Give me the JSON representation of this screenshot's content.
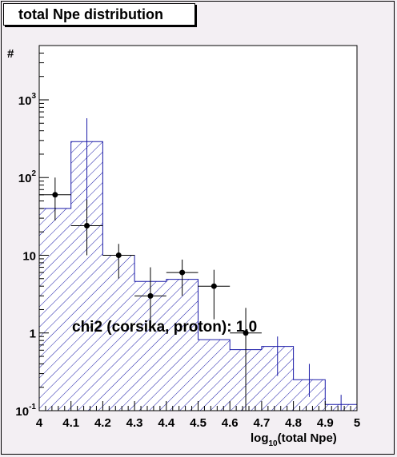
{
  "title": "total Npe distribution",
  "chart_data": {
    "type": "bar",
    "title": "total Npe distribution",
    "xlabel_main": "log",
    "xlabel_sub": "10",
    "xlabel_rest": "(total Npe)",
    "ylabel": "#",
    "xlim": [
      4.0,
      5.0
    ],
    "ylim": [
      0.1,
      5000
    ],
    "ylog": true,
    "x_ticks": [
      "4",
      "4.1",
      "4.2",
      "4.3",
      "4.4",
      "4.5",
      "4.6",
      "4.7",
      "4.8",
      "4.9",
      "5"
    ],
    "y_ticks": [
      {
        "value": 0.1,
        "base": "10",
        "exp": "-1"
      },
      {
        "value": 1,
        "base": "1",
        "exp": ""
      },
      {
        "value": 10,
        "base": "10",
        "exp": ""
      },
      {
        "value": 100,
        "base": "10",
        "exp": "2"
      },
      {
        "value": 1000,
        "base": "10",
        "exp": "3"
      }
    ],
    "series": [
      {
        "kind": "histogram",
        "color": "#1a1aa8",
        "bin_edges": [
          4.0,
          4.1,
          4.2,
          4.3,
          4.4,
          4.5,
          4.6,
          4.7,
          4.8,
          4.9,
          5.0
        ],
        "values": [
          40,
          290,
          10,
          4.6,
          4.9,
          0.82,
          0.61,
          0.67,
          0.25,
          0.12
        ],
        "errors_low": [
          0,
          45,
          0,
          0,
          0,
          0,
          0,
          0.28,
          0.15,
          0
        ],
        "errors_high": [
          0,
          580,
          0,
          0,
          0,
          0,
          0,
          0.9,
          0.4,
          0.16
        ]
      },
      {
        "kind": "points",
        "color": "#000000",
        "x": [
          4.05,
          4.15,
          4.25,
          4.35,
          4.45,
          4.55,
          4.65
        ],
        "y": [
          60,
          24,
          10,
          3,
          6,
          4,
          1
        ],
        "y_low": [
          28,
          10,
          5,
          1.2,
          3,
          1.5,
          0.1
        ],
        "y_high": [
          100,
          52,
          14,
          7,
          8.8,
          6.5,
          2.1
        ]
      }
    ],
    "annotation": "chi2 (corsika, proton): 1.0"
  }
}
